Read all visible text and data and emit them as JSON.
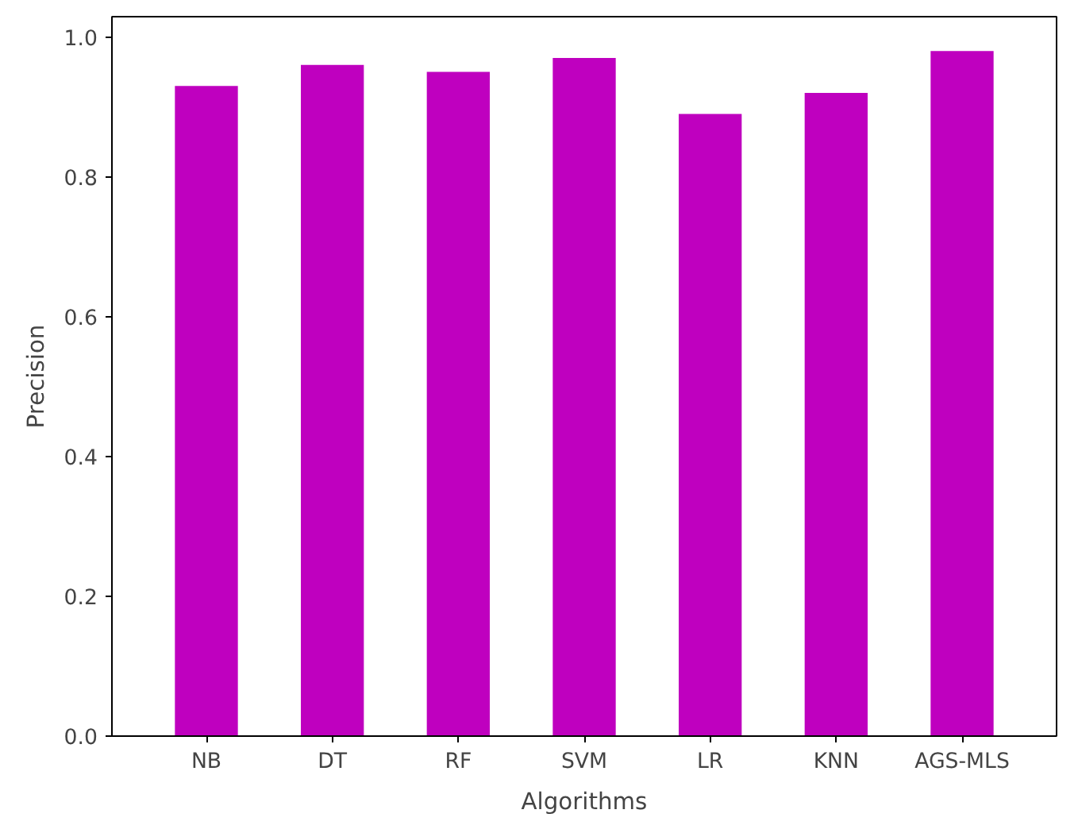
{
  "chart_data": {
    "type": "bar",
    "xlabel": "Algorithms",
    "ylabel": "Precision",
    "categories": [
      "NB",
      "DT",
      "RF",
      "SVM",
      "LR",
      "KNN",
      "AGS-MLS"
    ],
    "values": [
      0.93,
      0.96,
      0.95,
      0.97,
      0.89,
      0.92,
      0.98
    ],
    "color": "#bf00bf",
    "ylim": [
      0,
      1.029
    ],
    "yticks": [
      {
        "value": 0,
        "label": "0.0"
      },
      {
        "value": 0.2,
        "label": "0.2"
      },
      {
        "value": 0.4,
        "label": "0.4"
      },
      {
        "value": 0.6,
        "label": "0.6"
      },
      {
        "value": 0.8,
        "label": "0.8"
      },
      {
        "value": 1.0,
        "label": "1.0"
      }
    ],
    "grid": false
  }
}
